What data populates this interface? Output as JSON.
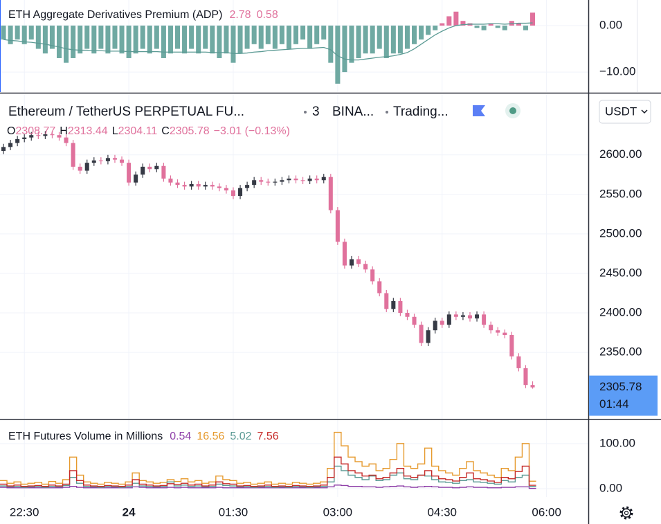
{
  "chart_data": [
    {
      "type": "combo",
      "title": "ETH Aggregate Derivatives Premium (ADP)",
      "ylim": [
        -14.3,
        5.5
      ],
      "yticks": [
        {
          "value": 0,
          "label": "0.00"
        },
        {
          "value": -10,
          "label": "−10.00"
        }
      ],
      "grid": true,
      "series": [
        {
          "type": "bar",
          "positive_color": "#e0719c",
          "negative_color": "#6fa9a2",
          "values": [
            -3,
            -4,
            -3,
            -4,
            -3,
            -5,
            -6,
            -5,
            -7,
            -8,
            -7,
            -6,
            -5,
            -6,
            -5,
            -6,
            -5,
            -6,
            -7,
            -6,
            -5,
            -6,
            -5,
            -7,
            -6,
            -5,
            -6,
            -5,
            -6,
            -5,
            -6,
            -7,
            -6,
            -8,
            -6,
            -5,
            -4,
            -5,
            -4,
            -5,
            -4,
            -5,
            -4,
            -3,
            -5,
            -4,
            -3,
            -8,
            -12.5,
            -10,
            -8,
            -7,
            -6,
            -6,
            -5,
            -7,
            -6,
            -6,
            -5,
            -4,
            -3,
            -2,
            -1,
            0.5,
            2,
            3,
            1,
            0.5,
            -0.5,
            -1,
            0.5,
            -0.5,
            -1,
            1,
            0.5,
            -1,
            2.78
          ]
        },
        {
          "type": "line",
          "color": "#5b9a94",
          "values": [
            -3,
            -3.2,
            -3.3,
            -3.5,
            -3.6,
            -3.8,
            -4,
            -4.3,
            -4.6,
            -5,
            -5.2,
            -5.3,
            -5.3,
            -5.4,
            -5.4,
            -5.5,
            -5.5,
            -5.5,
            -5.6,
            -5.6,
            -5.6,
            -5.6,
            -5.6,
            -5.7,
            -5.7,
            -5.7,
            -5.7,
            -5.7,
            -5.7,
            -5.7,
            -5.8,
            -5.8,
            -5.8,
            -6,
            -6,
            -5.9,
            -5.7,
            -5.6,
            -5.4,
            -5.3,
            -5.2,
            -5.1,
            -5,
            -4.9,
            -4.9,
            -4.8,
            -4.7,
            -5.2,
            -6.5,
            -7.2,
            -7.4,
            -7.4,
            -7.2,
            -7,
            -6.8,
            -6.7,
            -6.5,
            -6.2,
            -5.8,
            -5,
            -4,
            -3,
            -2,
            -1.2,
            -0.5,
            0,
            0.2,
            0.3,
            0.3,
            0.3,
            0.4,
            0.4,
            0.3,
            0.4,
            0.5,
            0.5,
            0.58
          ]
        }
      ]
    },
    {
      "type": "candlestick",
      "title": "Ethereum / TetherUS PERPETUAL FU...",
      "interval": "3",
      "exchange": "BINA...",
      "source": "Trading...",
      "currency": "USDT",
      "ohlc_labels": [
        "O",
        "H",
        "L",
        "C"
      ],
      "change_label": "−3.01 (−0.13%)",
      "countdown": "01:44",
      "up_color": "#363a45",
      "down_color": "#e0719c",
      "grid": true,
      "xlim": [
        1329,
        1836
      ],
      "xticks": [
        {
          "value": 1350,
          "label": "22:30"
        },
        {
          "value": 1440,
          "label": "24"
        },
        {
          "value": 1530,
          "label": "01:30"
        },
        {
          "value": 1620,
          "label": "03:00"
        },
        {
          "value": 1710,
          "label": "04:30"
        },
        {
          "value": 1800,
          "label": "06:00"
        }
      ],
      "ylim": [
        2266,
        2676
      ],
      "yticks": [
        {
          "value": 2350,
          "label": "2350.00"
        },
        {
          "value": 2400,
          "label": "2400.00"
        },
        {
          "value": 2450,
          "label": "2450.00"
        },
        {
          "value": 2500,
          "label": "2500.00"
        },
        {
          "value": 2550,
          "label": "2550.00"
        },
        {
          "value": 2600,
          "label": "2600.00"
        }
      ],
      "x": [
        1332,
        1338,
        1344,
        1350,
        1356,
        1362,
        1368,
        1374,
        1380,
        1386,
        1392,
        1398,
        1404,
        1410,
        1416,
        1422,
        1428,
        1434,
        1440,
        1446,
        1452,
        1458,
        1464,
        1470,
        1476,
        1482,
        1488,
        1494,
        1500,
        1506,
        1512,
        1518,
        1524,
        1530,
        1536,
        1542,
        1548,
        1554,
        1560,
        1566,
        1572,
        1578,
        1584,
        1590,
        1596,
        1602,
        1608,
        1614,
        1620,
        1626,
        1632,
        1638,
        1644,
        1650,
        1656,
        1662,
        1668,
        1674,
        1680,
        1686,
        1692,
        1698,
        1704,
        1710,
        1716,
        1722,
        1728,
        1734,
        1740,
        1746,
        1752,
        1758,
        1764,
        1770,
        1776,
        1782,
        1788
      ],
      "open": [
        2605,
        2610,
        2615,
        2620,
        2622,
        2625,
        2624,
        2626,
        2625,
        2622,
        2615,
        2585,
        2580,
        2590,
        2593,
        2592,
        2596,
        2594,
        2590,
        2565,
        2575,
        2585,
        2582,
        2586,
        2570,
        2565,
        2562,
        2560,
        2563,
        2560,
        2562,
        2560,
        2558,
        2555,
        2548,
        2558,
        2562,
        2568,
        2566,
        2565,
        2566,
        2568,
        2570,
        2568,
        2567,
        2570,
        2568,
        2572,
        2530,
        2490,
        2460,
        2468,
        2462,
        2455,
        2440,
        2425,
        2405,
        2415,
        2400,
        2395,
        2385,
        2362,
        2378,
        2390,
        2385,
        2398,
        2395,
        2397,
        2393,
        2398,
        2385,
        2378,
        2375,
        2372,
        2345,
        2330,
        2308.77
      ],
      "high": [
        2614,
        2619,
        2624,
        2626,
        2629,
        2629,
        2630,
        2630,
        2629,
        2626,
        2619,
        2589,
        2594,
        2597,
        2597,
        2600,
        2600,
        2598,
        2594,
        2579,
        2589,
        2589,
        2590,
        2590,
        2574,
        2569,
        2566,
        2567,
        2567,
        2566,
        2566,
        2564,
        2562,
        2559,
        2562,
        2566,
        2572,
        2572,
        2570,
        2570,
        2572,
        2574,
        2574,
        2572,
        2574,
        2574,
        2576,
        2576,
        2534,
        2494,
        2472,
        2472,
        2466,
        2459,
        2444,
        2429,
        2419,
        2419,
        2404,
        2399,
        2389,
        2382,
        2394,
        2394,
        2402,
        2402,
        2401,
        2401,
        2402,
        2402,
        2389,
        2382,
        2379,
        2376,
        2349,
        2334,
        2313.44
      ],
      "low": [
        2601,
        2606,
        2611,
        2616,
        2618,
        2620,
        2620,
        2621,
        2618,
        2611,
        2581,
        2576,
        2576,
        2586,
        2588,
        2588,
        2590,
        2586,
        2561,
        2561,
        2571,
        2578,
        2578,
        2566,
        2561,
        2558,
        2556,
        2556,
        2556,
        2556,
        2556,
        2554,
        2551,
        2544,
        2544,
        2554,
        2558,
        2562,
        2561,
        2561,
        2562,
        2564,
        2564,
        2563,
        2563,
        2564,
        2564,
        2526,
        2486,
        2456,
        2456,
        2458,
        2451,
        2436,
        2421,
        2401,
        2401,
        2396,
        2391,
        2381,
        2358,
        2358,
        2374,
        2381,
        2381,
        2391,
        2391,
        2389,
        2389,
        2381,
        2374,
        2371,
        2368,
        2341,
        2326,
        2304.77,
        2304.11
      ],
      "close": [
        2610,
        2615,
        2620,
        2622,
        2625,
        2624,
        2626,
        2625,
        2622,
        2615,
        2585,
        2580,
        2590,
        2593,
        2592,
        2596,
        2594,
        2590,
        2565,
        2575,
        2585,
        2582,
        2586,
        2570,
        2565,
        2562,
        2560,
        2563,
        2560,
        2562,
        2560,
        2558,
        2555,
        2548,
        2558,
        2562,
        2568,
        2566,
        2565,
        2566,
        2568,
        2570,
        2568,
        2567,
        2570,
        2568,
        2572,
        2530,
        2490,
        2460,
        2468,
        2462,
        2455,
        2440,
        2425,
        2405,
        2415,
        2400,
        2395,
        2385,
        2362,
        2378,
        2390,
        2385,
        2398,
        2395,
        2397,
        2393,
        2398,
        2385,
        2378,
        2375,
        2372,
        2345,
        2330,
        2308.77,
        2305.78
      ]
    },
    {
      "type": "line",
      "step": true,
      "title": "ETH Futures Volume in Millions",
      "grid": true,
      "ylim": [
        -18.5,
        152
      ],
      "yticks": [
        {
          "value": 100,
          "label": "100.00"
        },
        {
          "value": 0,
          "label": "0.00"
        }
      ],
      "series": [
        {
          "color": "#8e3fa8",
          "values": [
            3,
            2,
            2,
            2,
            2,
            2,
            2,
            2,
            2,
            3,
            5,
            3,
            2,
            2,
            2,
            2,
            2,
            2,
            2,
            4,
            3,
            2,
            2,
            2,
            3,
            2,
            3,
            2,
            2,
            2,
            2,
            3,
            2,
            2,
            2,
            2,
            2,
            2,
            2,
            2,
            2,
            2,
            2,
            2,
            2,
            2,
            2,
            4,
            8,
            7,
            5,
            5,
            4,
            4,
            3,
            4,
            5,
            6,
            4,
            3,
            4,
            5,
            4,
            3,
            3,
            2,
            3,
            4,
            3,
            3,
            2,
            2,
            3,
            3,
            4,
            4,
            0.54
          ]
        },
        {
          "color": "#e69a2e",
          "values": [
            18,
            12,
            15,
            10,
            12,
            14,
            10,
            16,
            12,
            20,
            70,
            30,
            15,
            12,
            10,
            14,
            12,
            10,
            15,
            35,
            18,
            15,
            12,
            14,
            20,
            16,
            22,
            15,
            18,
            12,
            15,
            28,
            20,
            18,
            12,
            14,
            10,
            12,
            15,
            10,
            12,
            10,
            14,
            12,
            10,
            12,
            15,
            45,
            125,
            95,
            70,
            60,
            50,
            55,
            40,
            45,
            65,
            100,
            50,
            45,
            55,
            90,
            50,
            40,
            35,
            30,
            45,
            60,
            40,
            35,
            30,
            25,
            45,
            40,
            70,
            100,
            16.56
          ]
        },
        {
          "color": "#5b9a94",
          "values": [
            6,
            4,
            5,
            3,
            4,
            5,
            3,
            5,
            4,
            7,
            25,
            12,
            5,
            4,
            3,
            5,
            4,
            3,
            5,
            12,
            6,
            5,
            4,
            5,
            15,
            6,
            8,
            5,
            6,
            4,
            5,
            10,
            7,
            6,
            4,
            5,
            3,
            4,
            5,
            3,
            4,
            3,
            5,
            4,
            3,
            4,
            5,
            15,
            50,
            40,
            30,
            25,
            20,
            28,
            18,
            20,
            30,
            35,
            22,
            20,
            30,
            28,
            20,
            15,
            14,
            12,
            18,
            20,
            15,
            14,
            12,
            10,
            18,
            15,
            25,
            30,
            5.02
          ]
        },
        {
          "color": "#c62a28",
          "values": [
            10,
            6,
            8,
            5,
            6,
            7,
            5,
            8,
            6,
            10,
            40,
            18,
            8,
            6,
            5,
            7,
            6,
            5,
            8,
            20,
            10,
            8,
            6,
            7,
            11,
            9,
            12,
            8,
            10,
            6,
            8,
            15,
            11,
            10,
            6,
            7,
            5,
            6,
            8,
            5,
            6,
            5,
            7,
            6,
            5,
            6,
            8,
            25,
            70,
            55,
            40,
            35,
            28,
            30,
            22,
            25,
            35,
            45,
            28,
            25,
            30,
            40,
            28,
            22,
            20,
            17,
            25,
            35,
            22,
            20,
            17,
            14,
            25,
            22,
            38,
            50,
            7.56
          ]
        }
      ]
    }
  ]
}
